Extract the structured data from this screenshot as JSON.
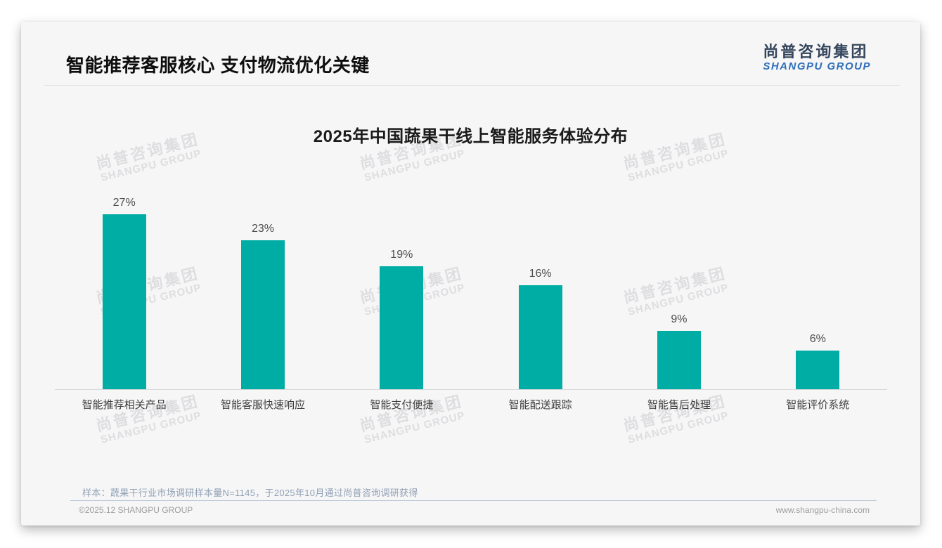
{
  "header": {
    "title": "智能推荐客服核心 支付物流优化关键",
    "logo_cn": "尚普咨询集团",
    "logo_en": "SHANGPU GROUP"
  },
  "watermark": {
    "line1": "尚普咨询集团",
    "line2": "SHANGPU GROUP"
  },
  "chart_data": {
    "type": "bar",
    "title": "2025年中国蔬果干线上智能服务体验分布",
    "categories": [
      "智能推荐相关产品",
      "智能客服快速响应",
      "智能支付便捷",
      "智能配送跟踪",
      "智能售后处理",
      "智能评价系统"
    ],
    "values": [
      27,
      23,
      19,
      16,
      9,
      6
    ],
    "value_labels": [
      "27%",
      "23%",
      "19%",
      "16%",
      "9%",
      "6%"
    ],
    "unit": "%",
    "xlabel": "",
    "ylabel": "",
    "ylim": [
      0,
      30
    ],
    "grid": false,
    "legend": false,
    "bar_color": "#00ADA4"
  },
  "footnote": "样本：蔬果干行业市场调研样本量N=1145，于2025年10月通过尚普咨询调研获得",
  "footer": {
    "left": "©2025.12 SHANGPU GROUP",
    "right": "www.shangpu-china.com"
  }
}
